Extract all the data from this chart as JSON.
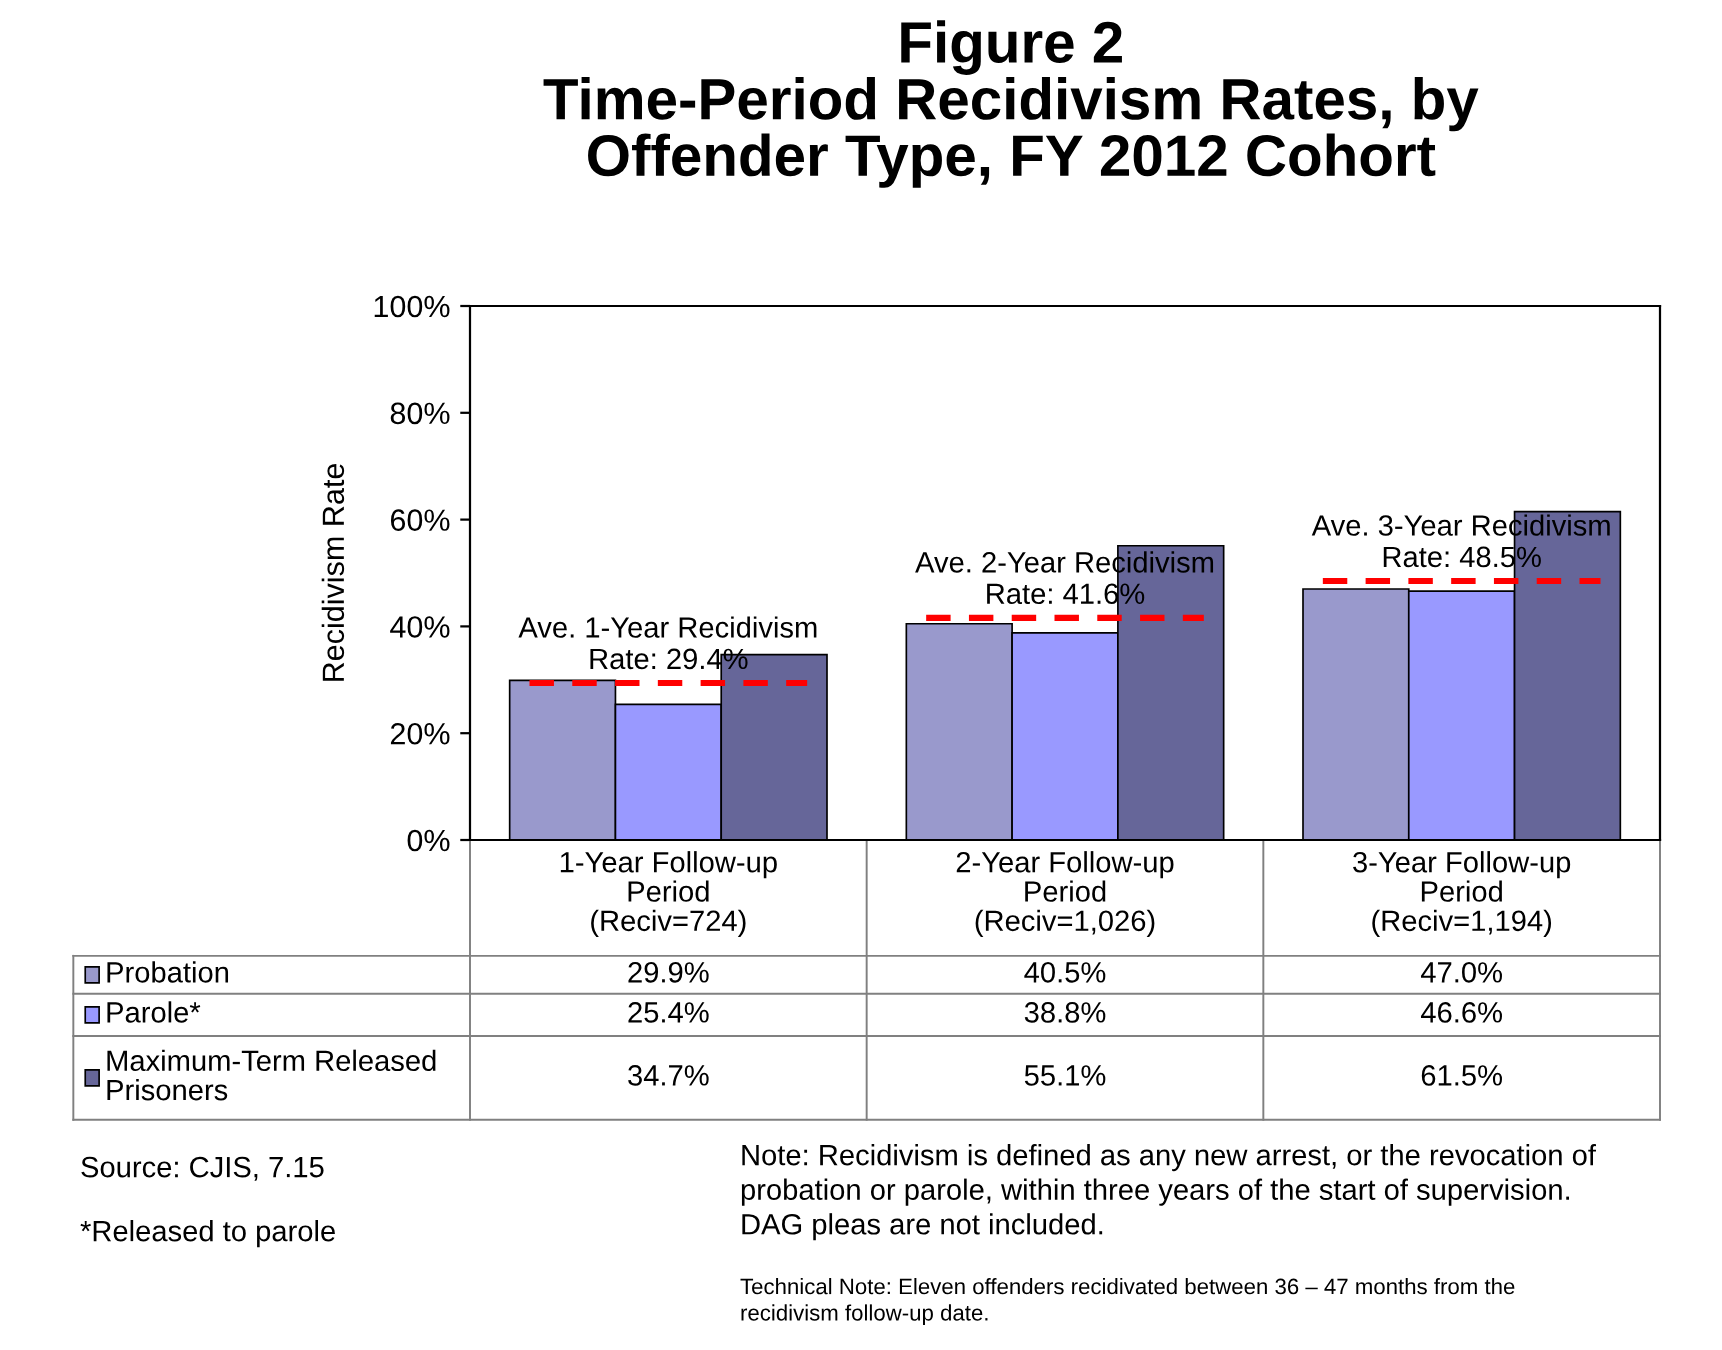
{
  "chart_data": {
    "type": "bar",
    "title": "Figure 2\nTime-Period Recidivism Rates, by\nOffender Type, FY 2012 Cohort",
    "ylabel": "Recidivism Rate",
    "categories": [
      "1-Year Follow-up\nPeriod\n(Reciv=724)",
      "2-Year Follow-up\nPeriod\n(Reciv=1,026)",
      "3-Year Follow-up\nPeriod\n(Reciv=1,194)"
    ],
    "series": [
      {
        "name": "Probation",
        "color": "#9999cc",
        "values": [
          29.9,
          40.5,
          47.0
        ],
        "value_labels": [
          "29.9%",
          "40.5%",
          "47.0%"
        ]
      },
      {
        "name": "Parole*",
        "color": "#9999ff",
        "values": [
          25.4,
          38.8,
          46.6
        ],
        "value_labels": [
          "25.4%",
          "38.8%",
          "46.6%"
        ]
      },
      {
        "name": "Maximum-Term Released\nPrisoners",
        "color": "#666699",
        "values": [
          34.7,
          55.1,
          61.5
        ],
        "value_labels": [
          "34.7%",
          "55.1%",
          "61.5%"
        ]
      }
    ],
    "ylim": [
      0,
      100
    ],
    "yticks": [
      {
        "value": 0,
        "label": "0%"
      },
      {
        "value": 20,
        "label": "20%"
      },
      {
        "value": 40,
        "label": "40%"
      },
      {
        "value": 60,
        "label": "60%"
      },
      {
        "value": 80,
        "label": "80%"
      },
      {
        "value": 100,
        "label": "100%"
      }
    ],
    "grid": false,
    "legend": "bottom left",
    "ref_lines": [
      {
        "axis": "y",
        "value": 29.4,
        "label": "Ave. 1-Year Recidivism\nRate: 29.4%",
        "color": "#ff0000",
        "line_style": "dashed"
      },
      {
        "axis": "y",
        "value": 41.6,
        "label": "Ave. 2-Year Recidivism\nRate: 41.6%",
        "color": "#ff0000",
        "line_style": "dashed"
      },
      {
        "axis": "y",
        "value": 48.5,
        "label": "Ave. 3-Year Recidivism\nRate: 48.5%",
        "color": "#ff0000",
        "line_style": "dashed"
      }
    ],
    "annotations": [
      "Source: CJIS, 7.15",
      "*Released to parole",
      "Note: Recidivism is defined as any new arrest, or the revocation of\nprobation or parole, within three years of the start of supervision.\nDAG pleas are not included.",
      "Technical Note: Eleven offenders recidivated between 36 – 47 months from the\nrecidivism follow-up date."
    ]
  }
}
